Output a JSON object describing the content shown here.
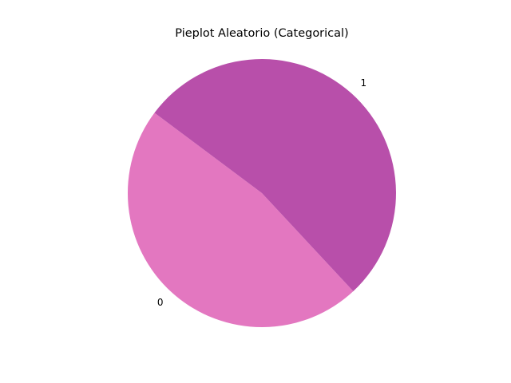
{
  "chart_data": {
    "type": "pie",
    "title": "Pieplot Aleatorio (Categorical)",
    "categories": [
      "0",
      "1"
    ],
    "values": [
      47.15,
      52.85
    ],
    "colors": [
      "#e377c0",
      "#b84faa"
    ],
    "start_angle_deg": 143.2,
    "clockwise": false,
    "legend": "none"
  }
}
